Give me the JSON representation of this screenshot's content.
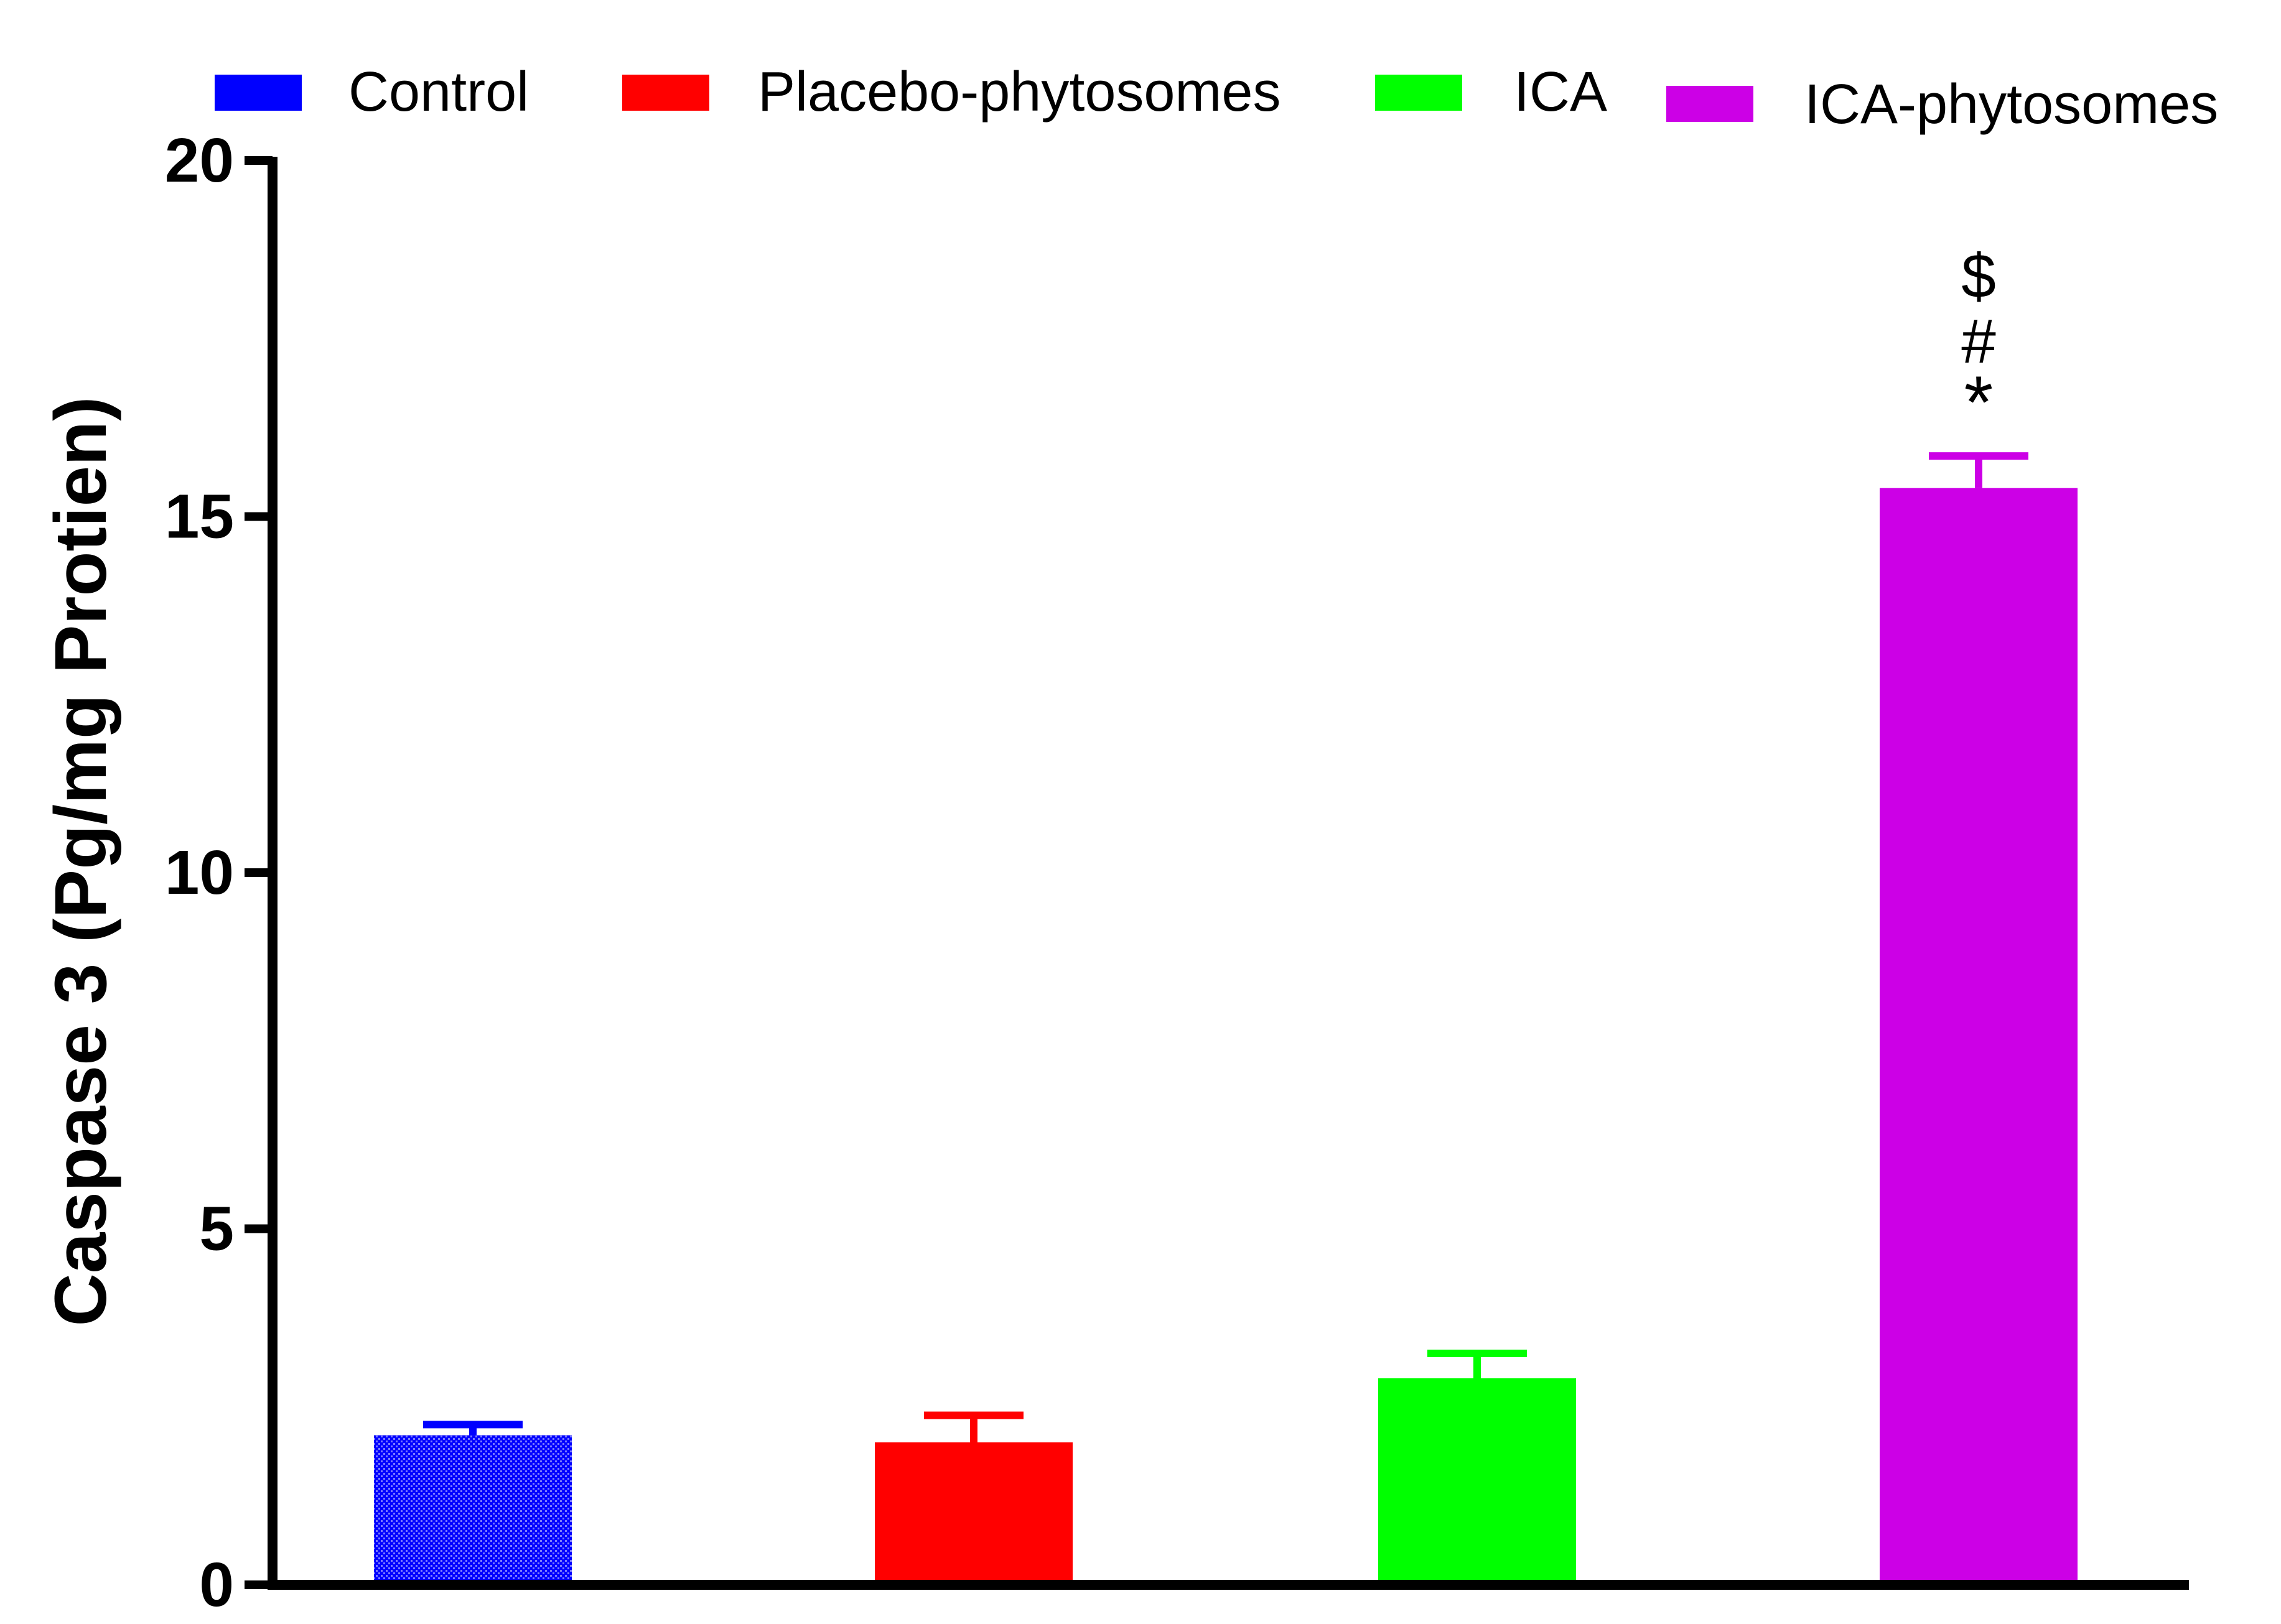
{
  "chart_data": {
    "type": "bar",
    "title": "",
    "xlabel": "",
    "ylabel": "Caspase 3 (Pg/mg Protien)",
    "ylim": [
      0,
      20
    ],
    "yticks": [
      "0",
      "5",
      "10",
      "15",
      "20"
    ],
    "grid": false,
    "legend_position": "top",
    "series": [
      {
        "name": "Control",
        "value": 2.1,
        "error": 0.15,
        "color": "#0000ff",
        "pattern": "dotted",
        "annotation": []
      },
      {
        "name": "Placebo-phytosomes",
        "value": 2.0,
        "error": 0.38,
        "color": "#ff0000",
        "pattern": "solid",
        "annotation": []
      },
      {
        "name": "ICA",
        "value": 2.9,
        "error": 0.35,
        "color": "#00ff00",
        "pattern": "solid",
        "annotation": []
      },
      {
        "name": "ICA-phytosomes",
        "value": 15.4,
        "error": 0.45,
        "color": "#cc00e6",
        "pattern": "solid",
        "annotation": [
          "$",
          "#",
          "*"
        ]
      }
    ]
  }
}
